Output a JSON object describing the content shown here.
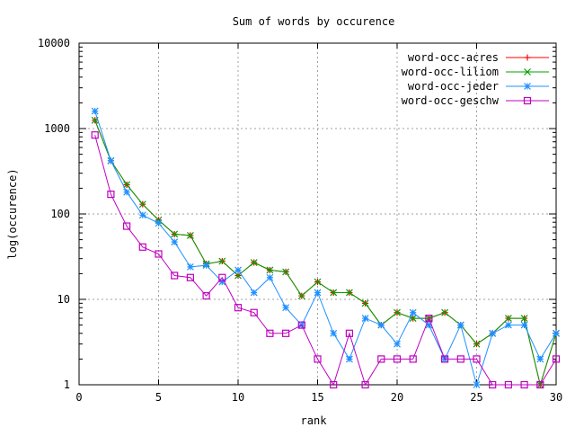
{
  "chart_data": {
    "type": "line",
    "title": "Sum of words by occurence",
    "xlabel": "rank",
    "ylabel": "log(occurence)",
    "xlim": [
      0,
      30
    ],
    "ylim": [
      1,
      10000
    ],
    "yscale": "log",
    "grid": true,
    "legend_position": "top-right",
    "x_ticks": [
      0,
      5,
      10,
      15,
      20,
      25,
      30
    ],
    "x_tick_labels": [
      "0",
      "5",
      "10",
      "15",
      "20",
      "25",
      "30"
    ],
    "y_ticks": [
      1,
      10,
      100,
      1000,
      10000
    ],
    "y_tick_labels": [
      "1",
      "10",
      "100",
      "1000",
      "10000"
    ],
    "x": [
      1,
      2,
      3,
      4,
      5,
      6,
      7,
      8,
      9,
      10,
      11,
      12,
      13,
      14,
      15,
      16,
      17,
      18,
      19,
      20,
      21,
      22,
      23,
      24,
      25,
      26,
      27,
      28,
      29,
      30
    ],
    "series": [
      {
        "name": "word-occ-acres",
        "color": "#ff0000",
        "marker": "plus",
        "values": [
          1250,
          420,
          220,
          130,
          85,
          58,
          56,
          26,
          28,
          19,
          27,
          22,
          21,
          11,
          16,
          12,
          12,
          9,
          5,
          7,
          6,
          6,
          7,
          5,
          3,
          4,
          6,
          6,
          1,
          4
        ]
      },
      {
        "name": "word-occ-liliom",
        "color": "#00a000",
        "marker": "x",
        "values": [
          1250,
          420,
          220,
          130,
          85,
          58,
          56,
          26,
          28,
          19,
          27,
          22,
          21,
          11,
          16,
          12,
          12,
          9,
          5,
          7,
          6,
          6,
          7,
          5,
          3,
          4,
          6,
          6,
          1,
          4
        ]
      },
      {
        "name": "word-occ-jeder",
        "color": "#1e90ff",
        "marker": "star",
        "values": [
          1600,
          420,
          180,
          97,
          78,
          47,
          24,
          25,
          16,
          22,
          12,
          18,
          8,
          5,
          12,
          4,
          2,
          6,
          5,
          3,
          7,
          5,
          2,
          5,
          1,
          4,
          5,
          5,
          2,
          4
        ]
      },
      {
        "name": "word-occ-geschw",
        "color": "#c000c0",
        "marker": "square",
        "values": [
          840,
          170,
          72,
          41,
          34,
          19,
          18,
          11,
          18,
          8,
          7,
          4,
          4,
          5,
          2,
          1,
          4,
          1,
          2,
          2,
          2,
          6,
          2,
          2,
          2,
          1,
          1,
          1,
          1,
          2
        ]
      }
    ]
  }
}
